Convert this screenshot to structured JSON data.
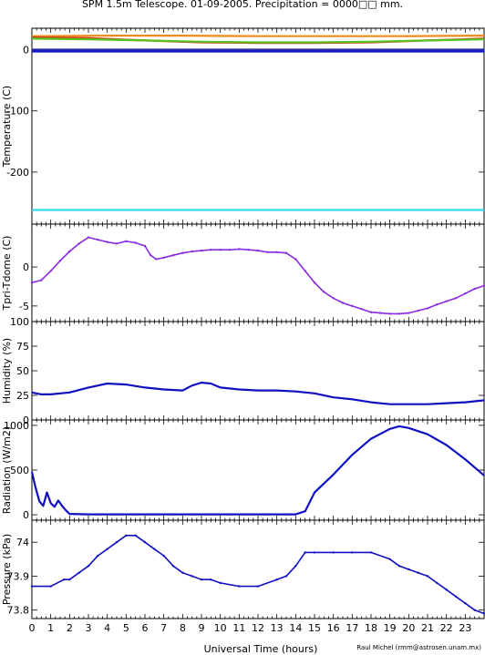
{
  "figure": {
    "title": "SPM 1.5m Telescope. 01-09-2005. Precipitation = 0000□□ mm.",
    "credit": "Raul Michel (rmm@astrosen.unam.mx)",
    "xlabel": "Universal Time (hours)",
    "xticks": [
      "0",
      "1",
      "2",
      "3",
      "4",
      "5",
      "6",
      "7",
      "8",
      "9",
      "10",
      "11",
      "12",
      "13",
      "14",
      "15",
      "16",
      "17",
      "18",
      "19",
      "20",
      "21",
      "22",
      "23"
    ]
  },
  "chart_data": [
    {
      "type": "line",
      "ylabel": "Temperature (C)",
      "xlim": [
        0,
        24
      ],
      "ylim": [
        -285,
        35
      ],
      "yticks": [
        0,
        -100,
        -200
      ],
      "series": [
        {
          "color": "#f08a1c",
          "x": [
            0,
            4,
            8,
            12,
            16,
            20,
            24
          ],
          "y": [
            22,
            23,
            23,
            22,
            22,
            22,
            23
          ]
        },
        {
          "color": "#d23a1a",
          "x": [
            0,
            3,
            6,
            9,
            12,
            15,
            18,
            21,
            24
          ],
          "y": [
            20,
            19,
            15,
            12,
            11,
            11,
            12,
            15,
            18
          ]
        },
        {
          "color": "#55c21f",
          "x": [
            0,
            3,
            6,
            9,
            12,
            15,
            18,
            21,
            24
          ],
          "y": [
            18,
            17,
            15,
            13,
            12,
            12,
            13,
            15,
            17
          ]
        },
        {
          "color": "#2a2aa8",
          "x": [
            0,
            24
          ],
          "y": [
            0,
            0
          ]
        },
        {
          "color": "#1515c8",
          "x": [
            0,
            24
          ],
          "y": [
            -3,
            -3
          ]
        },
        {
          "color": "#35d8e8",
          "x": [
            0,
            24
          ],
          "y": [
            -262,
            -262
          ]
        }
      ]
    },
    {
      "type": "scatter",
      "ylabel": "Tpri-Tdome (C)",
      "xlim": [
        0,
        24
      ],
      "ylim": [
        -7,
        5.5
      ],
      "yticks": [
        0,
        -5
      ],
      "series": [
        {
          "color": "#8a2be2",
          "x": [
            0,
            0.5,
            1,
            1.5,
            2,
            2.5,
            3,
            3.5,
            4,
            4.5,
            5,
            5.5,
            6,
            6.3,
            6.6,
            7,
            7.5,
            8,
            8.5,
            9,
            9.5,
            10,
            10.5,
            11,
            11.5,
            12,
            12.5,
            13,
            13.5,
            14,
            14.5,
            15,
            15.5,
            16,
            16.5,
            17,
            17.5,
            18,
            18.5,
            19,
            19.5,
            20,
            20.5,
            21,
            21.5,
            22,
            22.5,
            23,
            23.5,
            24
          ],
          "y": [
            -2,
            -1.7,
            -0.5,
            0.8,
            2,
            3,
            3.8,
            3.5,
            3.2,
            3.0,
            3.3,
            3.1,
            2.7,
            1.5,
            1.0,
            1.2,
            1.5,
            1.8,
            2.0,
            2.1,
            2.2,
            2.2,
            2.2,
            2.3,
            2.2,
            2.1,
            1.9,
            1.9,
            1.8,
            1.0,
            -0.5,
            -2,
            -3.2,
            -4,
            -4.6,
            -5,
            -5.4,
            -5.8,
            -5.9,
            -6.0,
            -6.0,
            -5.9,
            -5.6,
            -5.3,
            -4.8,
            -4.4,
            -4,
            -3.4,
            -2.8,
            -2.4
          ]
        }
      ]
    },
    {
      "type": "line",
      "ylabel": "Humidity (%)",
      "xlim": [
        0,
        24
      ],
      "ylim": [
        0,
        100
      ],
      "yticks": [
        0,
        25,
        50,
        75,
        100
      ],
      "series": [
        {
          "color": "#1010c0",
          "x": [
            0,
            0.5,
            1,
            2,
            3,
            4,
            5,
            6,
            7,
            8,
            8.5,
            9,
            9.5,
            10,
            11,
            12,
            13,
            14,
            15,
            16,
            17,
            18,
            19,
            20,
            21,
            22,
            23,
            24
          ],
          "y": [
            28,
            26,
            26,
            28,
            33,
            37,
            36,
            33,
            31,
            30,
            35,
            38,
            37,
            33,
            31,
            30,
            30,
            29,
            27,
            23,
            21,
            18,
            16,
            16,
            16,
            17,
            18,
            20
          ]
        }
      ]
    },
    {
      "type": "line",
      "ylabel": "Radiation (W/m2)",
      "xlim": [
        0,
        24
      ],
      "ylim": [
        -60,
        1060
      ],
      "yticks": [
        0,
        500,
        1000
      ],
      "series": [
        {
          "color": "#1010c0",
          "x": [
            0,
            0.2,
            0.4,
            0.6,
            0.8,
            1,
            1.2,
            1.4,
            1.6,
            1.8,
            2,
            3,
            6,
            9,
            12,
            14,
            14.5,
            15,
            16,
            17,
            18,
            19,
            19.5,
            20,
            21,
            22,
            23,
            24
          ],
          "y": [
            480,
            300,
            150,
            100,
            250,
            130,
            90,
            160,
            100,
            50,
            10,
            5,
            5,
            5,
            5,
            5,
            40,
            250,
            450,
            670,
            850,
            960,
            990,
            970,
            900,
            780,
            620,
            440
          ]
        }
      ]
    },
    {
      "type": "scatter",
      "ylabel": "Pressure (kPa)",
      "xlim": [
        0,
        24
      ],
      "ylim": [
        73.775,
        74.065
      ],
      "yticks": [
        73.8,
        73.9,
        74.0
      ],
      "series": [
        {
          "color": "#1010c0",
          "x": [
            0,
            1,
            1.7,
            2,
            2.5,
            3,
            3.5,
            4,
            4.5,
            5,
            5.5,
            6,
            6.5,
            7,
            7.5,
            8,
            8.5,
            9,
            9.5,
            10,
            11,
            12,
            13,
            13.5,
            14,
            14.5,
            15,
            16,
            17,
            18,
            19,
            19.5,
            20,
            20.5,
            21,
            21.5,
            22,
            22.5,
            23,
            23.5,
            24
          ],
          "y": [
            73.87,
            73.87,
            73.89,
            73.89,
            73.91,
            73.93,
            73.96,
            73.98,
            74.0,
            74.02,
            74.02,
            74.0,
            73.98,
            73.96,
            73.93,
            73.91,
            73.9,
            73.89,
            73.89,
            73.88,
            73.87,
            73.87,
            73.89,
            73.9,
            73.93,
            73.97,
            73.97,
            73.97,
            73.97,
            73.97,
            73.95,
            73.93,
            73.92,
            73.91,
            73.9,
            73.88,
            73.86,
            73.84,
            73.82,
            73.8,
            73.79
          ]
        }
      ]
    }
  ]
}
